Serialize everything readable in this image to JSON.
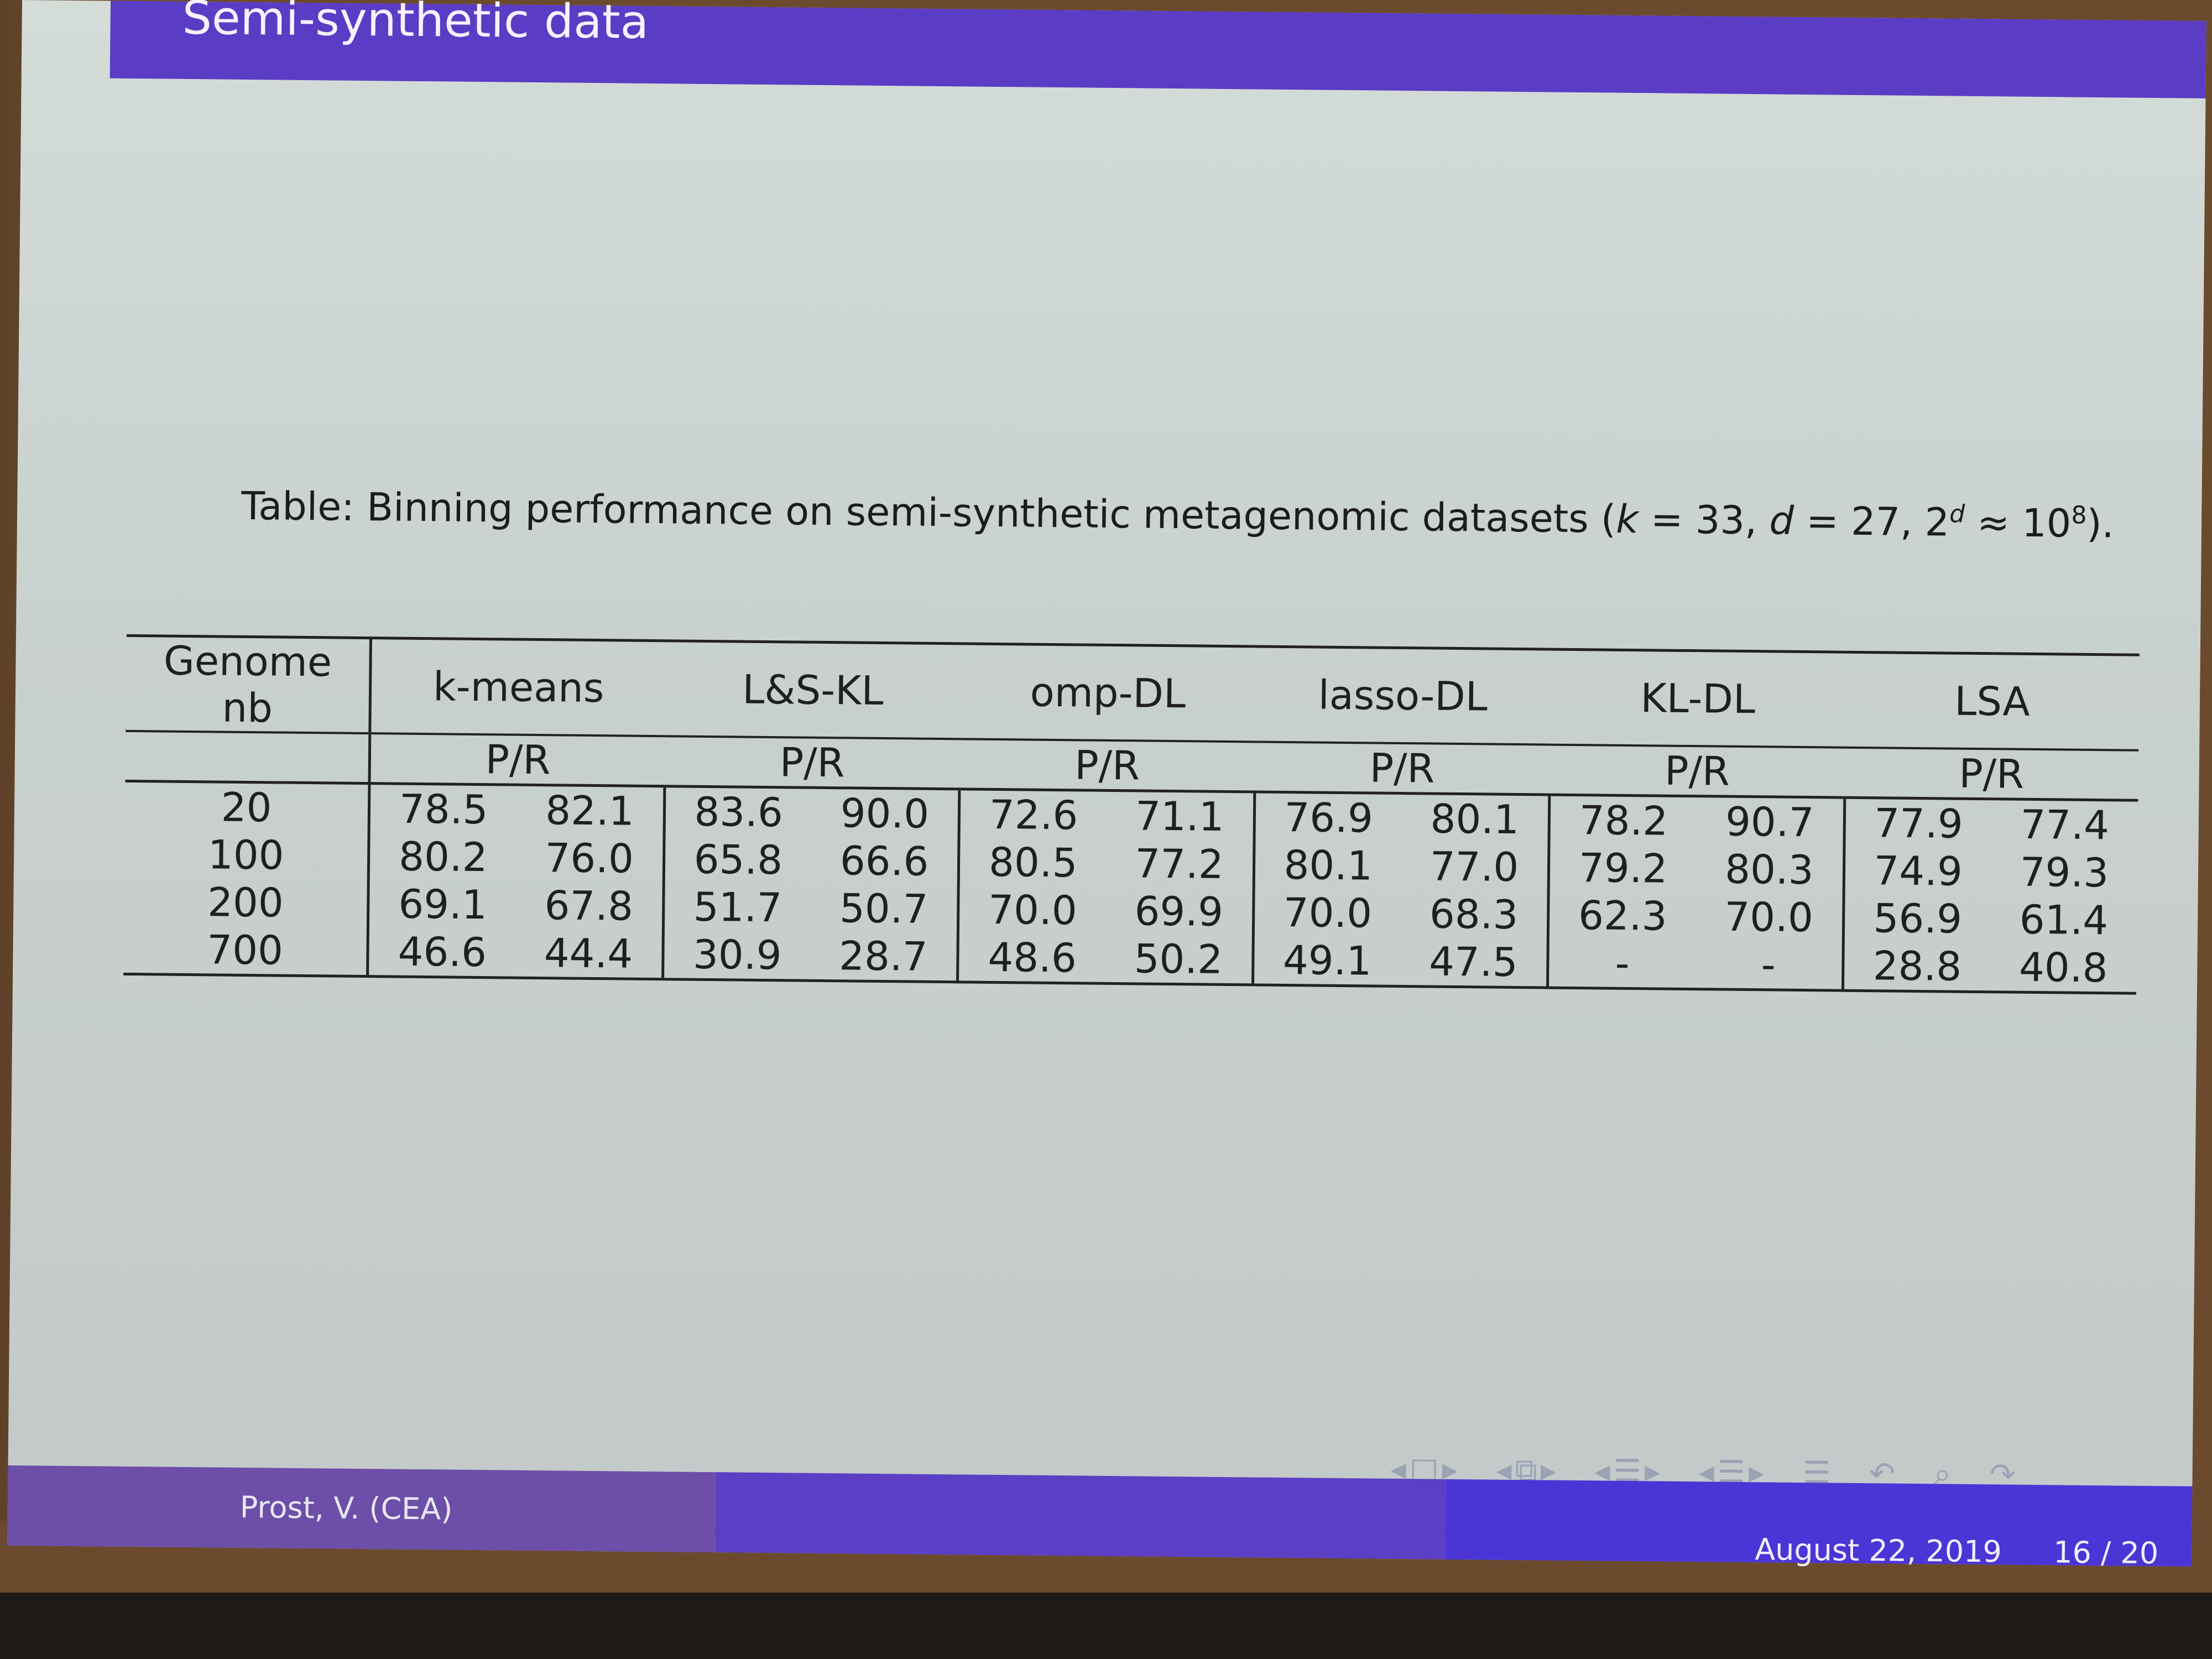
{
  "slide": {
    "title": "Semi-synthetic data"
  },
  "caption": {
    "prefix": "Table: Binning performance on semi-synthetic metagenomic datasets (",
    "k": "k",
    "k_eq": " = 33, ",
    "d": "d",
    "d_eq": " = 27, 2",
    "d_sup": "d",
    "approx": " ≈ 10",
    "exp": "8",
    "suffix": ")."
  },
  "table": {
    "row_header": "Genome nb",
    "methods": [
      "k-means",
      "L&S-KL",
      "omp-DL",
      "lasso-DL",
      "KL-DL",
      "LSA"
    ],
    "subheader": "P/R",
    "rows": [
      {
        "nb": "20",
        "cells": [
          "78.5",
          "82.1",
          "83.6",
          "90.0",
          "72.6",
          "71.1",
          "76.9",
          "80.1",
          "78.2",
          "90.7",
          "77.9",
          "77.4"
        ]
      },
      {
        "nb": "100",
        "cells": [
          "80.2",
          "76.0",
          "65.8",
          "66.6",
          "80.5",
          "77.2",
          "80.1",
          "77.0",
          "79.2",
          "80.3",
          "74.9",
          "79.3"
        ]
      },
      {
        "nb": "200",
        "cells": [
          "69.1",
          "67.8",
          "51.7",
          "50.7",
          "70.0",
          "69.9",
          "70.0",
          "68.3",
          "62.3",
          "70.0",
          "56.9",
          "61.4"
        ]
      },
      {
        "nb": "700",
        "cells": [
          "46.6",
          "44.4",
          "30.9",
          "28.7",
          "48.6",
          "50.2",
          "49.1",
          "47.5",
          "-",
          "-",
          "28.8",
          "40.8"
        ]
      }
    ]
  },
  "footer": {
    "author": "Prost, V.  (CEA)",
    "date": "August 22, 2019",
    "page": "16 / 20"
  },
  "nav": {
    "icons": [
      "frame-nav-icon",
      "slide-nav-icon",
      "section-nav-icon",
      "subsection-nav-icon",
      "toc-icon",
      "search-icon",
      "back-icon"
    ]
  }
}
